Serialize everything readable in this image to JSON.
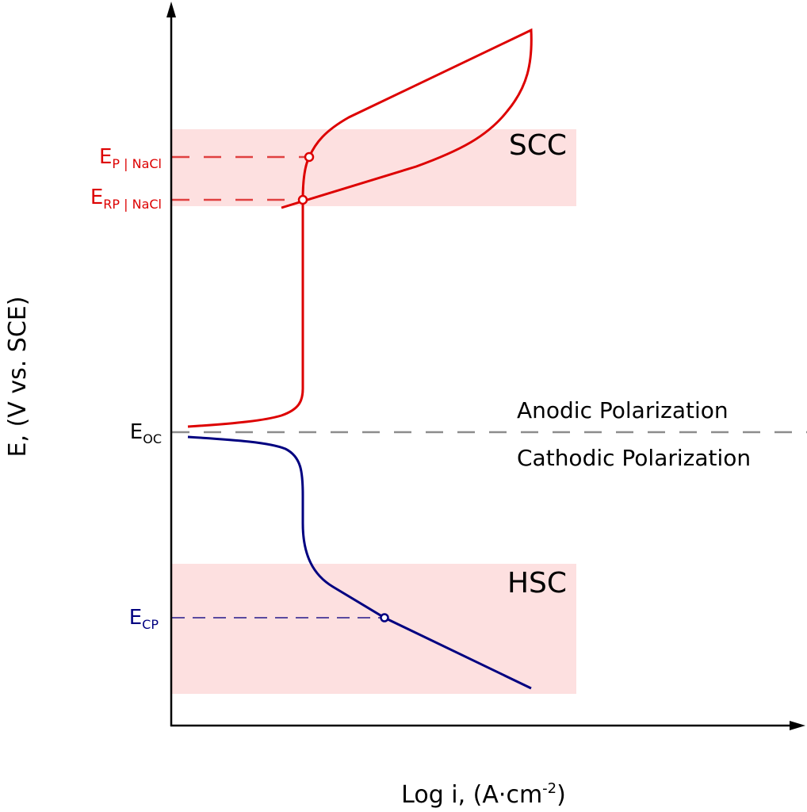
{
  "axes": {
    "ylabel": "E, (V vs. SCE)",
    "xlabel_main": "Log i, (A·cm",
    "xlabel_sup": "-2",
    "xlabel_end": ")"
  },
  "regions": {
    "scc": "SCC",
    "hsc": "HSC"
  },
  "labels": {
    "ep_main": "E",
    "ep_sub": "P | NaCl",
    "erp_main": "E",
    "erp_sub": "RP | NaCl",
    "eoc_main": "E",
    "eoc_sub": "OC",
    "ecp_main": "E",
    "ecp_sub": "CP",
    "anodic": "Anodic Polarization",
    "cathodic": "Cathodic Polarization"
  },
  "colors": {
    "anodic_curve": "#dd0000",
    "cathodic_curve": "#000080",
    "region_fill": "#fde0e0",
    "eoc_line": "#8c8c8c",
    "ecp_line": "#5a4aa0"
  }
}
